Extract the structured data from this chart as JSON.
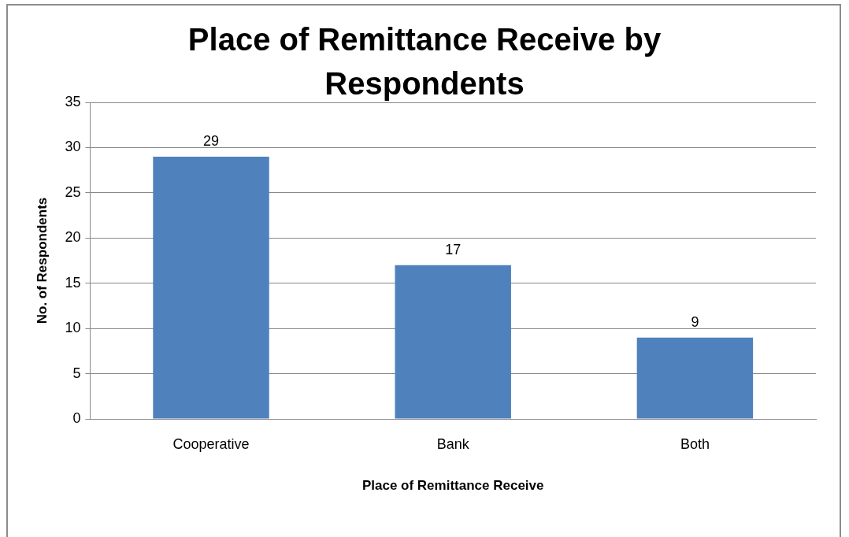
{
  "chart_data": {
    "type": "bar",
    "title": "Place of Remittance Receive by Respondents",
    "xlabel": "Place of Remittance Receive",
    "ylabel": "No. of Respondents",
    "categories": [
      "Cooperative",
      "Bank",
      "Both"
    ],
    "values": [
      29,
      17,
      9
    ],
    "color": "#4f81bd",
    "ylim": [
      0,
      35
    ],
    "yticks": [
      0,
      5,
      10,
      15,
      20,
      25,
      30,
      35
    ],
    "grid": "y",
    "data_labels": true
  }
}
